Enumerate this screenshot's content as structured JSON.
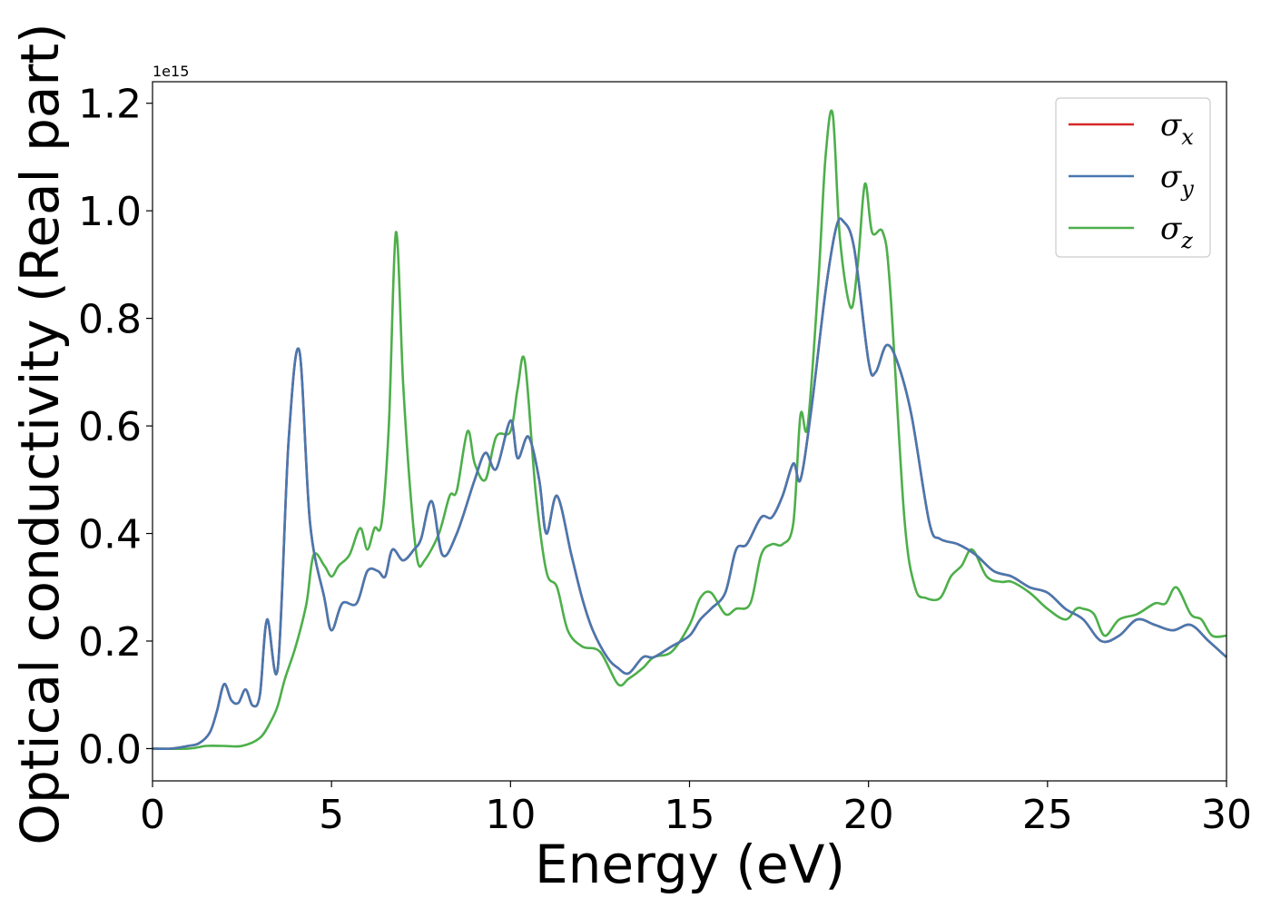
{
  "chart_data": {
    "type": "line",
    "xlabel": "Energy (eV)",
    "ylabel": "Optical conductivity (Real part)",
    "y_offset_text": "1e15",
    "y_scale": 1000000000000000.0,
    "xlim": [
      0,
      30
    ],
    "ylim": [
      -0.06,
      1.24
    ],
    "xticks": [
      0,
      5,
      10,
      15,
      20,
      25,
      30
    ],
    "xtick_labels": [
      "0",
      "5",
      "10",
      "15",
      "20",
      "25",
      "30"
    ],
    "yticks": [
      0.0,
      0.2,
      0.4,
      0.6,
      0.8,
      1.0,
      1.2
    ],
    "ytick_labels": [
      "0.0",
      "0.2",
      "0.4",
      "0.6",
      "0.8",
      "1.0",
      "1.2"
    ],
    "grid": false,
    "legend_position": "top-right",
    "series": [
      {
        "name": "σx",
        "legend_symbol": "σ",
        "legend_subscript": "x",
        "color": "#d62728",
        "x": [
          0,
          0.5,
          1.0,
          1.3,
          1.6,
          1.8,
          2.0,
          2.2,
          2.4,
          2.6,
          2.8,
          3.0,
          3.2,
          3.5,
          3.8,
          4.1,
          4.4,
          4.8,
          5.0,
          5.3,
          5.7,
          6.0,
          6.3,
          6.5,
          6.7,
          7.0,
          7.3,
          7.5,
          7.8,
          8.1,
          8.5,
          9.0,
          9.3,
          9.6,
          10.0,
          10.2,
          10.5,
          10.8,
          11.0,
          11.3,
          11.7,
          12.0,
          12.3,
          12.7,
          13.0,
          13.3,
          13.7,
          14.0,
          14.5,
          15.0,
          15.3,
          15.6,
          16.0,
          16.3,
          16.6,
          17.0,
          17.3,
          17.6,
          17.9,
          18.1,
          18.4,
          18.8,
          19.1,
          19.3,
          19.6,
          20.0,
          20.2,
          20.5,
          20.8,
          21.2,
          21.7,
          22.0,
          22.5,
          23.0,
          23.5,
          24.0,
          24.5,
          25.0,
          25.5,
          26.0,
          26.5,
          27.0,
          27.5,
          28.0,
          28.5,
          29.0,
          29.5,
          30.0
        ],
        "y": [
          0.0,
          0.0,
          0.005,
          0.01,
          0.03,
          0.07,
          0.12,
          0.09,
          0.085,
          0.11,
          0.08,
          0.1,
          0.24,
          0.15,
          0.57,
          0.74,
          0.42,
          0.28,
          0.22,
          0.27,
          0.27,
          0.33,
          0.33,
          0.32,
          0.37,
          0.35,
          0.37,
          0.39,
          0.46,
          0.36,
          0.4,
          0.5,
          0.55,
          0.52,
          0.61,
          0.54,
          0.58,
          0.5,
          0.4,
          0.47,
          0.36,
          0.28,
          0.22,
          0.17,
          0.15,
          0.14,
          0.17,
          0.17,
          0.19,
          0.21,
          0.24,
          0.26,
          0.29,
          0.37,
          0.38,
          0.43,
          0.43,
          0.47,
          0.53,
          0.5,
          0.63,
          0.85,
          0.97,
          0.98,
          0.93,
          0.72,
          0.7,
          0.75,
          0.72,
          0.62,
          0.42,
          0.39,
          0.38,
          0.36,
          0.33,
          0.32,
          0.3,
          0.29,
          0.26,
          0.24,
          0.2,
          0.21,
          0.24,
          0.23,
          0.22,
          0.23,
          0.2,
          0.17
        ]
      },
      {
        "name": "σy",
        "legend_symbol": "σ",
        "legend_subscript": "y",
        "color": "#4878b0",
        "x": [
          0,
          0.5,
          1.0,
          1.3,
          1.6,
          1.8,
          2.0,
          2.2,
          2.4,
          2.6,
          2.8,
          3.0,
          3.2,
          3.5,
          3.8,
          4.1,
          4.4,
          4.8,
          5.0,
          5.3,
          5.7,
          6.0,
          6.3,
          6.5,
          6.7,
          7.0,
          7.3,
          7.5,
          7.8,
          8.1,
          8.5,
          9.0,
          9.3,
          9.6,
          10.0,
          10.2,
          10.5,
          10.8,
          11.0,
          11.3,
          11.7,
          12.0,
          12.3,
          12.7,
          13.0,
          13.3,
          13.7,
          14.0,
          14.5,
          15.0,
          15.3,
          15.6,
          16.0,
          16.3,
          16.6,
          17.0,
          17.3,
          17.6,
          17.9,
          18.1,
          18.4,
          18.8,
          19.1,
          19.3,
          19.6,
          20.0,
          20.2,
          20.5,
          20.8,
          21.2,
          21.7,
          22.0,
          22.5,
          23.0,
          23.5,
          24.0,
          24.5,
          25.0,
          25.5,
          26.0,
          26.5,
          27.0,
          27.5,
          28.0,
          28.5,
          29.0,
          29.5,
          30.0
        ],
        "y": [
          0.0,
          0.0,
          0.005,
          0.01,
          0.03,
          0.07,
          0.12,
          0.09,
          0.085,
          0.11,
          0.08,
          0.1,
          0.24,
          0.15,
          0.57,
          0.74,
          0.42,
          0.28,
          0.22,
          0.27,
          0.27,
          0.33,
          0.33,
          0.32,
          0.37,
          0.35,
          0.37,
          0.39,
          0.46,
          0.36,
          0.4,
          0.5,
          0.55,
          0.52,
          0.61,
          0.54,
          0.58,
          0.5,
          0.4,
          0.47,
          0.36,
          0.28,
          0.22,
          0.17,
          0.15,
          0.14,
          0.17,
          0.17,
          0.19,
          0.21,
          0.24,
          0.26,
          0.29,
          0.37,
          0.38,
          0.43,
          0.43,
          0.47,
          0.53,
          0.5,
          0.63,
          0.85,
          0.97,
          0.98,
          0.93,
          0.72,
          0.7,
          0.75,
          0.72,
          0.62,
          0.42,
          0.39,
          0.38,
          0.36,
          0.33,
          0.32,
          0.3,
          0.29,
          0.26,
          0.24,
          0.2,
          0.21,
          0.24,
          0.23,
          0.22,
          0.23,
          0.2,
          0.17
        ]
      },
      {
        "name": "σz",
        "legend_symbol": "σ",
        "legend_subscript": "z",
        "color": "#4daf4a",
        "x": [
          0,
          1.0,
          1.5,
          2.0,
          2.5,
          3.0,
          3.3,
          3.5,
          3.7,
          4.0,
          4.3,
          4.5,
          4.8,
          5.0,
          5.2,
          5.5,
          5.8,
          6.0,
          6.2,
          6.4,
          6.6,
          6.8,
          7.0,
          7.2,
          7.4,
          7.6,
          8.0,
          8.3,
          8.5,
          8.8,
          9.0,
          9.3,
          9.6,
          10.0,
          10.2,
          10.4,
          10.7,
          11.0,
          11.3,
          11.6,
          12.0,
          12.5,
          13.0,
          13.3,
          13.7,
          14.0,
          14.5,
          15.0,
          15.3,
          15.6,
          16.0,
          16.3,
          16.7,
          17.0,
          17.3,
          17.6,
          17.9,
          18.1,
          18.3,
          18.6,
          18.8,
          19.0,
          19.2,
          19.5,
          19.7,
          19.9,
          20.1,
          20.4,
          20.6,
          21.0,
          21.3,
          21.6,
          22.0,
          22.3,
          22.6,
          22.9,
          23.3,
          23.7,
          24.0,
          24.5,
          25.0,
          25.5,
          25.8,
          26.0,
          26.3,
          26.6,
          27.0,
          27.5,
          28.0,
          28.3,
          28.6,
          29.0,
          29.3,
          29.6,
          30.0
        ],
        "y": [
          0.0,
          0.0,
          0.005,
          0.005,
          0.005,
          0.02,
          0.05,
          0.08,
          0.13,
          0.19,
          0.27,
          0.36,
          0.34,
          0.32,
          0.34,
          0.36,
          0.41,
          0.37,
          0.41,
          0.42,
          0.6,
          0.96,
          0.68,
          0.48,
          0.35,
          0.35,
          0.4,
          0.47,
          0.48,
          0.59,
          0.53,
          0.5,
          0.58,
          0.59,
          0.67,
          0.72,
          0.48,
          0.33,
          0.3,
          0.22,
          0.19,
          0.18,
          0.12,
          0.13,
          0.15,
          0.17,
          0.18,
          0.23,
          0.28,
          0.29,
          0.25,
          0.26,
          0.27,
          0.36,
          0.38,
          0.38,
          0.42,
          0.62,
          0.6,
          0.87,
          1.1,
          1.18,
          0.95,
          0.82,
          0.9,
          1.05,
          0.96,
          0.96,
          0.86,
          0.43,
          0.3,
          0.28,
          0.28,
          0.32,
          0.34,
          0.37,
          0.32,
          0.31,
          0.31,
          0.29,
          0.26,
          0.24,
          0.26,
          0.26,
          0.25,
          0.21,
          0.24,
          0.25,
          0.27,
          0.27,
          0.3,
          0.25,
          0.24,
          0.21,
          0.21
        ]
      }
    ]
  }
}
